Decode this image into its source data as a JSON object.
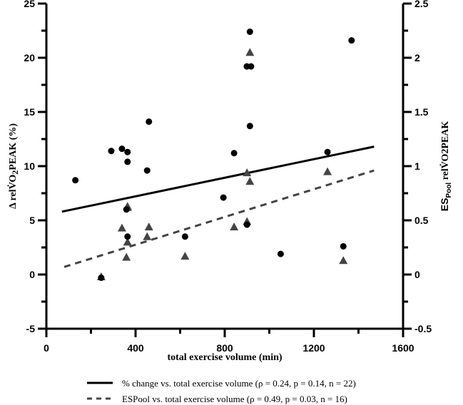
{
  "chart_data": {
    "type": "scatter",
    "title": "",
    "xlabel": "total exercise volume (min)",
    "ylabel_left": "Δ relV̇O2PEAK (%)",
    "ylabel_right": "ES_Pool relV̇O2PEAK",
    "ylabel_right_parts": {
      "main": "ES",
      "sub": "Pool",
      "rest": " relV̇O2PEAK"
    },
    "xlim": [
      0,
      1600
    ],
    "ylim_left": [
      -5,
      25
    ],
    "ylim_right": [
      -0.5,
      2.5
    ],
    "x_ticks": [
      "0",
      "400",
      "800",
      "1200",
      "1600"
    ],
    "x_tick_values": [
      0,
      400,
      800,
      1200,
      1600
    ],
    "y_ticks_left": [
      "-5",
      "0",
      "5",
      "10",
      "15",
      "20",
      "25"
    ],
    "y_tick_values_left": [
      -5,
      0,
      5,
      10,
      15,
      20,
      25
    ],
    "y_ticks_right": [
      "-0.5",
      "0",
      "0.5",
      "1",
      "1.5",
      "2",
      "2.5"
    ],
    "y_tick_values_right": [
      -0.5,
      0,
      0.5,
      1,
      1.5,
      2,
      2.5
    ],
    "grid": false,
    "legend_position": "bottom",
    "series": [
      {
        "name": "% change vs. total exercise volume (ρ = 0.24, p = 0.14, n = 22)",
        "axis": "left",
        "marker": "circle",
        "color": "#000000",
        "points": [
          [
            130,
            8.7
          ],
          [
            246,
            -0.3
          ],
          [
            291,
            11.4
          ],
          [
            339,
            11.6
          ],
          [
            364,
            11.3
          ],
          [
            364,
            10.4
          ],
          [
            359,
            6.0
          ],
          [
            364,
            3.5
          ],
          [
            452,
            9.6
          ],
          [
            460,
            14.1
          ],
          [
            622,
            3.5
          ],
          [
            794,
            7.1
          ],
          [
            842,
            11.2
          ],
          [
            899,
            19.2
          ],
          [
            918,
            19.2
          ],
          [
            913,
            22.4
          ],
          [
            913,
            13.7
          ],
          [
            900,
            4.6
          ],
          [
            1051,
            1.9
          ],
          [
            1261,
            11.3
          ],
          [
            1332,
            2.6
          ],
          [
            1369,
            21.6
          ]
        ],
        "trendline": {
          "style": "solid",
          "x": [
            70,
            1470
          ],
          "y": [
            5.8,
            11.8
          ]
        }
      },
      {
        "name": "ESPool vs. total exercise volume (ρ = 0.49, p = 0.03, n = 16)",
        "axis": "right",
        "marker": "triangle",
        "color": "#444444",
        "points": [
          [
            246,
            -0.02
          ],
          [
            339,
            0.43
          ],
          [
            359,
            0.16
          ],
          [
            364,
            0.62
          ],
          [
            364,
            0.3
          ],
          [
            452,
            0.35
          ],
          [
            460,
            0.44
          ],
          [
            622,
            0.17
          ],
          [
            842,
            0.44
          ],
          [
            900,
            0.49
          ],
          [
            900,
            0.94
          ],
          [
            913,
            0.86
          ],
          [
            913,
            2.05
          ],
          [
            1261,
            0.95
          ],
          [
            1332,
            0.13
          ],
          [
            364,
            0.63
          ]
        ],
        "trendline": {
          "style": "dashed",
          "x": [
            80,
            1470
          ],
          "y": [
            0.07,
            0.96
          ]
        }
      }
    ]
  },
  "legend": {
    "items": [
      {
        "label": "% change vs. total exercise volume (ρ = 0.24, p = 0.14, n = 22)",
        "style": "solid"
      },
      {
        "label": "ESPool vs. total exercise volume (ρ = 0.49, p = 0.03, n = 16)",
        "style": "dashed"
      }
    ]
  },
  "colors": {
    "primary": "#000000",
    "secondary": "#444444"
  }
}
